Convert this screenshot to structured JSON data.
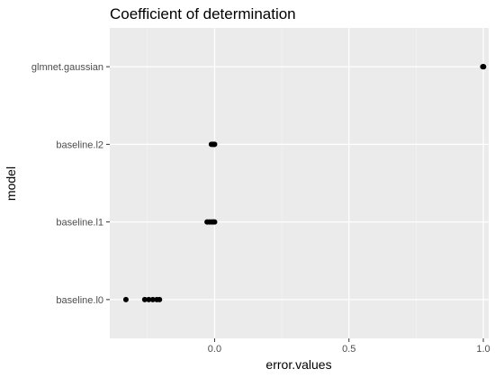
{
  "chart_data": {
    "type": "scatter",
    "title": "Coefficient of determination",
    "xlabel": "error.values",
    "ylabel": "model",
    "xlim": [
      -0.39,
      1.02
    ],
    "x_ticks": [
      "0.0",
      "0.5",
      "1.0"
    ],
    "x_tick_values": [
      0.0,
      0.5,
      1.0
    ],
    "categories": [
      "baseline.l0",
      "baseline.l1",
      "baseline.l2",
      "glmnet.gaussian"
    ],
    "points": [
      {
        "model": "glmnet.gaussian",
        "x": 0.998
      },
      {
        "model": "glmnet.gaussian",
        "x": 1.0
      },
      {
        "model": "glmnet.gaussian",
        "x": 1.001
      },
      {
        "model": "baseline.l2",
        "x": -0.012
      },
      {
        "model": "baseline.l2",
        "x": -0.006
      },
      {
        "model": "baseline.l2",
        "x": -0.002
      },
      {
        "model": "baseline.l2",
        "x": 0.0
      },
      {
        "model": "baseline.l1",
        "x": -0.028
      },
      {
        "model": "baseline.l1",
        "x": -0.02
      },
      {
        "model": "baseline.l1",
        "x": -0.012
      },
      {
        "model": "baseline.l1",
        "x": -0.005
      },
      {
        "model": "baseline.l1",
        "x": 0.0
      },
      {
        "model": "baseline.l0",
        "x": -0.33
      },
      {
        "model": "baseline.l0",
        "x": -0.26
      },
      {
        "model": "baseline.l0",
        "x": -0.245
      },
      {
        "model": "baseline.l0",
        "x": -0.23
      },
      {
        "model": "baseline.l0",
        "x": -0.215
      },
      {
        "model": "baseline.l0",
        "x": -0.205
      }
    ],
    "grid": true,
    "legend": "none",
    "colors": {
      "panel_background": "#EBEBEB",
      "grid_major": "#FFFFFF",
      "grid_minor": "#F5F5F5",
      "point": "#000000"
    }
  }
}
